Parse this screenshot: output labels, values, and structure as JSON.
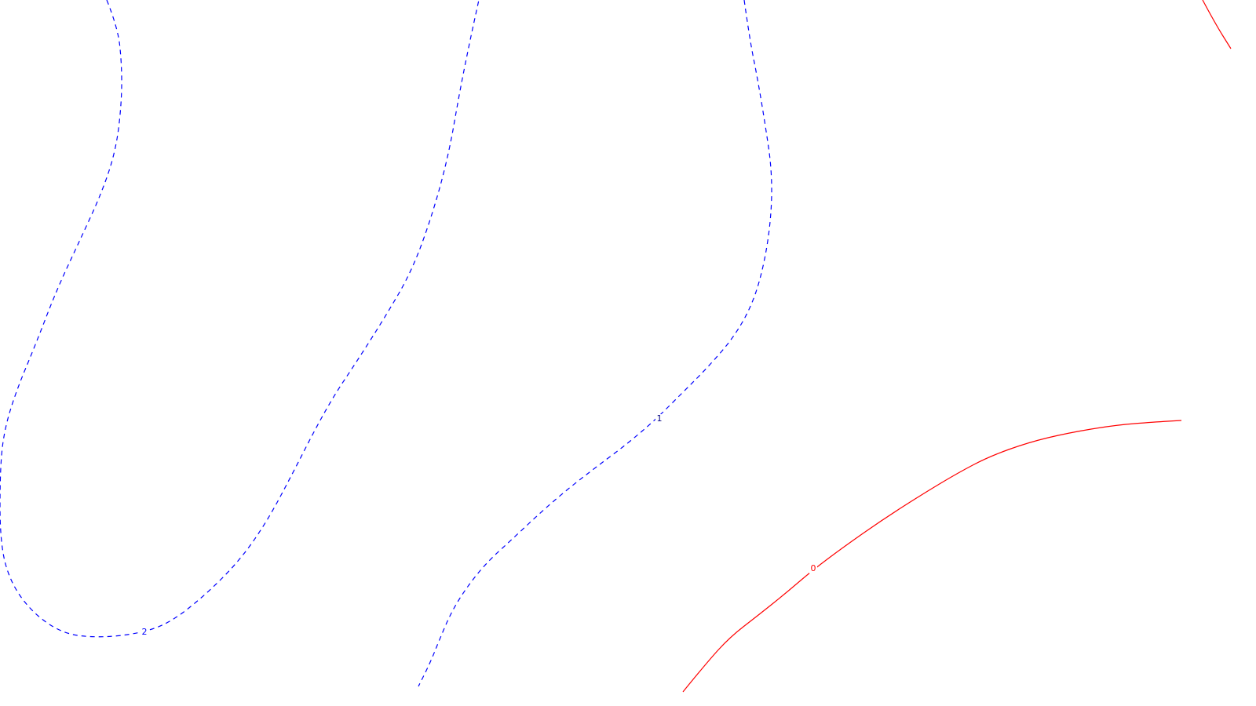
{
  "chart_data": {
    "type": "contour",
    "title": "",
    "xlabel": "",
    "ylabel": "",
    "grid": false,
    "legend": "none",
    "levels": [
      {
        "level": 2,
        "label": "2",
        "style": "dashed",
        "color": "#0000ff",
        "points": [
          [
            136,
            0
          ],
          [
            150,
            35
          ],
          [
            155,
            80
          ],
          [
            155,
            130
          ],
          [
            148,
            190
          ],
          [
            130,
            245
          ],
          [
            100,
            310
          ],
          [
            72,
            370
          ],
          [
            45,
            440
          ],
          [
            20,
            500
          ],
          [
            5,
            550
          ],
          [
            0,
            600
          ],
          [
            0,
            690
          ],
          [
            12,
            740
          ],
          [
            40,
            780
          ],
          [
            80,
            808
          ],
          [
            125,
            813
          ],
          [
            175,
            808
          ],
          [
            215,
            795
          ],
          [
            260,
            760
          ],
          [
            305,
            715
          ],
          [
            340,
            665
          ],
          [
            372,
            605
          ],
          [
            400,
            550
          ],
          [
            425,
            505
          ],
          [
            455,
            460
          ],
          [
            490,
            405
          ],
          [
            525,
            345
          ],
          [
            552,
            270
          ],
          [
            572,
            195
          ],
          [
            585,
            120
          ],
          [
            598,
            55
          ],
          [
            610,
            0
          ]
        ]
      },
      {
        "level": 1,
        "label": "1",
        "style": "dashed",
        "color": "#0000ff",
        "points": [
          [
            948,
            0
          ],
          [
            955,
            50
          ],
          [
            965,
            100
          ],
          [
            975,
            160
          ],
          [
            983,
            215
          ],
          [
            983,
            270
          ],
          [
            975,
            330
          ],
          [
            960,
            385
          ],
          [
            935,
            430
          ],
          [
            900,
            470
          ],
          [
            870,
            500
          ],
          [
            835,
            535
          ],
          [
            800,
            565
          ],
          [
            760,
            595
          ],
          [
            725,
            622
          ],
          [
            690,
            652
          ],
          [
            655,
            685
          ],
          [
            620,
            717
          ],
          [
            595,
            748
          ],
          [
            575,
            780
          ],
          [
            560,
            815
          ],
          [
            548,
            845
          ],
          [
            533,
            875
          ]
        ]
      },
      {
        "level": 0,
        "label": "0",
        "style": "solid",
        "color": "#ff0000",
        "points": [
          [
            870,
            882
          ],
          [
            900,
            845
          ],
          [
            930,
            812
          ],
          [
            965,
            785
          ],
          [
            1000,
            757
          ],
          [
            1035,
            727
          ],
          [
            1075,
            697
          ],
          [
            1125,
            662
          ],
          [
            1175,
            630
          ],
          [
            1220,
            603
          ],
          [
            1260,
            582
          ],
          [
            1310,
            564
          ],
          [
            1360,
            552
          ],
          [
            1420,
            542
          ],
          [
            1470,
            538
          ],
          [
            1505,
            536
          ]
        ]
      },
      {
        "level": 0,
        "label": "",
        "style": "solid",
        "color": "#ff0000",
        "points": [
          [
            1532,
            0
          ],
          [
            1548,
            30
          ],
          [
            1568,
            62
          ]
        ]
      }
    ],
    "labels": [
      {
        "text": "2",
        "x": 184,
        "y": 806,
        "color": "#0000ff"
      },
      {
        "text": "1",
        "x": 840,
        "y": 534,
        "color": "#000080"
      },
      {
        "text": "0",
        "x": 1036,
        "y": 725,
        "color": "#ff0000"
      }
    ]
  }
}
